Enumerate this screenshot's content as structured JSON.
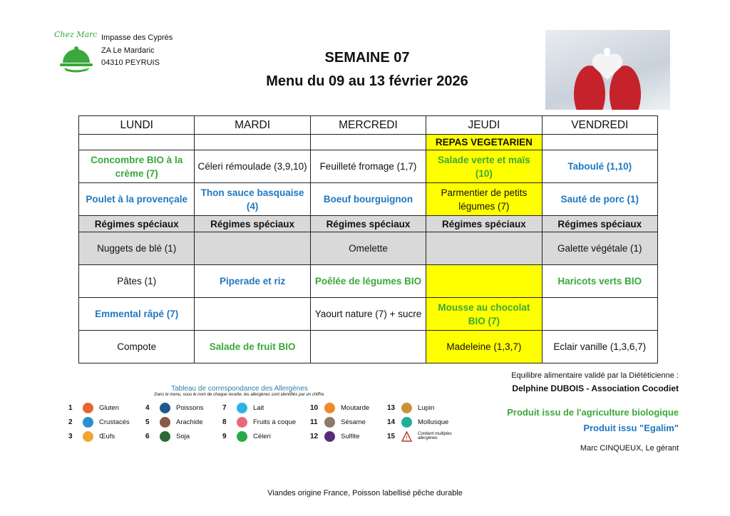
{
  "header": {
    "logo_text": "Chez Marc",
    "address": [
      "Impasse des Cyprès",
      "ZA Le Mardaric",
      "04310 PEYRUIS"
    ],
    "week": "SEMAINE 07",
    "menu_title": "Menu du 09 au 13 février 2026"
  },
  "colors": {
    "bio_green": "#3aa83a",
    "egalim_blue": "#1f78c1",
    "vegetarian_yellow": "#ffff00",
    "special_gray": "#d9d9d9"
  },
  "table": {
    "days": [
      "LUNDI",
      "MARDI",
      "MERCREDI",
      "JEUDI",
      "VENDREDI"
    ],
    "rows": [
      [
        {
          "t": ""
        },
        {
          "t": ""
        },
        {
          "t": ""
        },
        {
          "t": "REPAS VEGETARIEN",
          "c": "y b"
        },
        {
          "t": ""
        }
      ],
      [
        {
          "t": "Concombre BIO à la crème (7)",
          "c": "green"
        },
        {
          "t": "Céleri rémoulade (3,9,10)"
        },
        {
          "t": "Feuilleté fromage (1,7)"
        },
        {
          "t": "Salade verte et maïs (10)",
          "c": "y green"
        },
        {
          "t": "Taboulé (1,10)",
          "c": "blue"
        }
      ],
      [
        {
          "t": "Poulet à la provençale",
          "c": "blue"
        },
        {
          "t": "Thon sauce basquaise (4)",
          "c": "blue"
        },
        {
          "t": "Boeuf bourguignon",
          "c": "blue"
        },
        {
          "t": "Parmentier de petits légumes (7)",
          "c": "y"
        },
        {
          "t": "Sauté de porc (1)",
          "c": "blue"
        }
      ],
      [
        {
          "t": "Régimes spéciaux"
        },
        {
          "t": "Régimes spéciaux"
        },
        {
          "t": "Régimes spéciaux"
        },
        {
          "t": "Régimes spéciaux"
        },
        {
          "t": "Régimes spéciaux"
        }
      ],
      [
        {
          "t": "Nuggets de blé (1)",
          "c": "gr"
        },
        {
          "t": "",
          "c": "gr"
        },
        {
          "t": "Omelette",
          "c": "gr"
        },
        {
          "t": "",
          "c": "gr"
        },
        {
          "t": "Galette végétale (1)",
          "c": "gr"
        }
      ],
      [
        {
          "t": "Pâtes (1)"
        },
        {
          "t": "Piperade et riz",
          "c": "blue"
        },
        {
          "t": "Poêlée de légumes BIO",
          "c": "green"
        },
        {
          "t": "",
          "c": "y"
        },
        {
          "t": "Haricots verts BIO",
          "c": "green"
        }
      ],
      [
        {
          "t": "Emmental râpé (7)",
          "c": "blue"
        },
        {
          "t": ""
        },
        {
          "t": "Yaourt nature (7) + sucre"
        },
        {
          "t": "Mousse au chocolat BIO (7)",
          "c": "y green"
        },
        {
          "t": ""
        }
      ],
      [
        {
          "t": "Compote"
        },
        {
          "t": "Salade de fruit BIO",
          "c": "green"
        },
        {
          "t": ""
        },
        {
          "t": "Madeleine (1,3,7)",
          "c": "y"
        },
        {
          "t": "Eclair vanille (1,3,6,7)"
        }
      ]
    ]
  },
  "allergens": {
    "title": "Tableau de correspondance des Allergènes",
    "subtitle": "Dans le menu, sous le nom de chaque recette, les allergènes sont identifiés par un chiffre.",
    "items": [
      {
        "n": "1",
        "label": "Gluten",
        "icon": "wheat-icon",
        "color": "#e8672a"
      },
      {
        "n": "4",
        "label": "Poissons",
        "icon": "fish-icon",
        "color": "#1e5a8c"
      },
      {
        "n": "7",
        "label": "Lait",
        "icon": "milk-icon",
        "color": "#2bb3e6"
      },
      {
        "n": "10",
        "label": "Moutarde",
        "icon": "mustard-icon",
        "color": "#ee8a2a"
      },
      {
        "n": "13",
        "label": "Lupin",
        "icon": "lupin-icon",
        "color": "#c99434"
      },
      {
        "n": "2",
        "label": "Crustacés",
        "icon": "crab-icon",
        "color": "#2a8fd0"
      },
      {
        "n": "5",
        "label": "Arachide",
        "icon": "peanut-icon",
        "color": "#8a5a45"
      },
      {
        "n": "8",
        "label": "Fruits à coque",
        "icon": "nut-icon",
        "color": "#e86a7a"
      },
      {
        "n": "11",
        "label": "Sésame",
        "icon": "sesame-icon",
        "color": "#8a7a6a"
      },
      {
        "n": "14",
        "label": "Mollusque",
        "icon": "shell-icon",
        "color": "#1fae98"
      },
      {
        "n": "3",
        "label": "Œufs",
        "icon": "egg-icon",
        "color": "#f2a533"
      },
      {
        "n": "6",
        "label": "Soja",
        "icon": "soy-icon",
        "color": "#2a6a3a"
      },
      {
        "n": "9",
        "label": "Céleri",
        "icon": "celery-icon",
        "color": "#2aa84a"
      },
      {
        "n": "12",
        "label": "Sulfite",
        "icon": "sulfite-icon",
        "color": "#5a2a7a"
      },
      {
        "n": "15",
        "label": "Contient multiples allergènes",
        "icon": "warning-icon",
        "color": "#c0392b"
      }
    ]
  },
  "notes": {
    "validated": "Equilibre alimentaire validé par la Diététicienne :",
    "dietitian": "Delphine DUBOIS - Association Cocodiet",
    "bio": "Produit issu de l'agriculture biologique",
    "egalim": "Produit issu \"Egalim\"",
    "manager": "Marc CINQUEUX, Le gérant",
    "footer": "Viandes origine France, Poisson labellisé pêche durable"
  }
}
